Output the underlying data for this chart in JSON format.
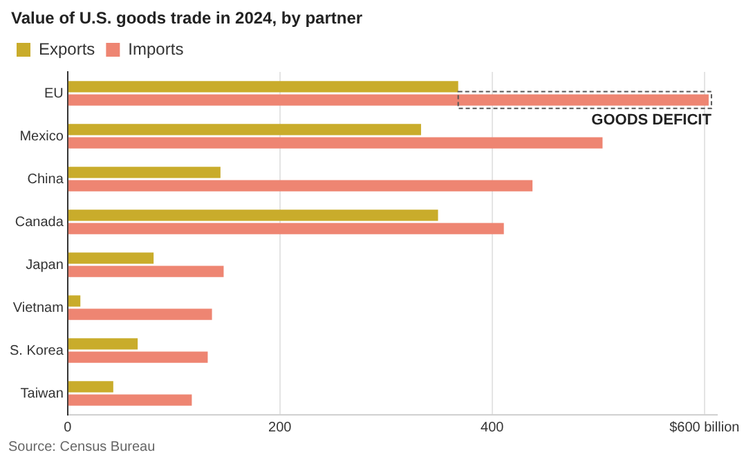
{
  "chart_data": {
    "type": "bar",
    "orientation": "horizontal",
    "title": "Value of U.S. goods trade in 2024, by partner",
    "categories": [
      "EU",
      "Mexico",
      "China",
      "Canada",
      "Japan",
      "Vietnam",
      "S. Korea",
      "Taiwan"
    ],
    "series": [
      {
        "name": "Exports",
        "color": "#c9ac2b",
        "values": [
          368,
          333,
          144,
          349,
          81,
          12,
          66,
          43
        ]
      },
      {
        "name": "Imports",
        "color": "#ee8572",
        "values": [
          604,
          504,
          438,
          411,
          147,
          136,
          132,
          117
        ]
      }
    ],
    "xlim": [
      0,
      612
    ],
    "xticks": [
      0,
      200,
      400,
      {
        "value": 600,
        "label": "$600 billion"
      }
    ],
    "grid": "x",
    "legend": "top left",
    "annotations": [
      {
        "text": "GOODS DEFICIT",
        "x": 604,
        "y": "EU"
      },
      "Source: Census Bureau"
    ]
  }
}
